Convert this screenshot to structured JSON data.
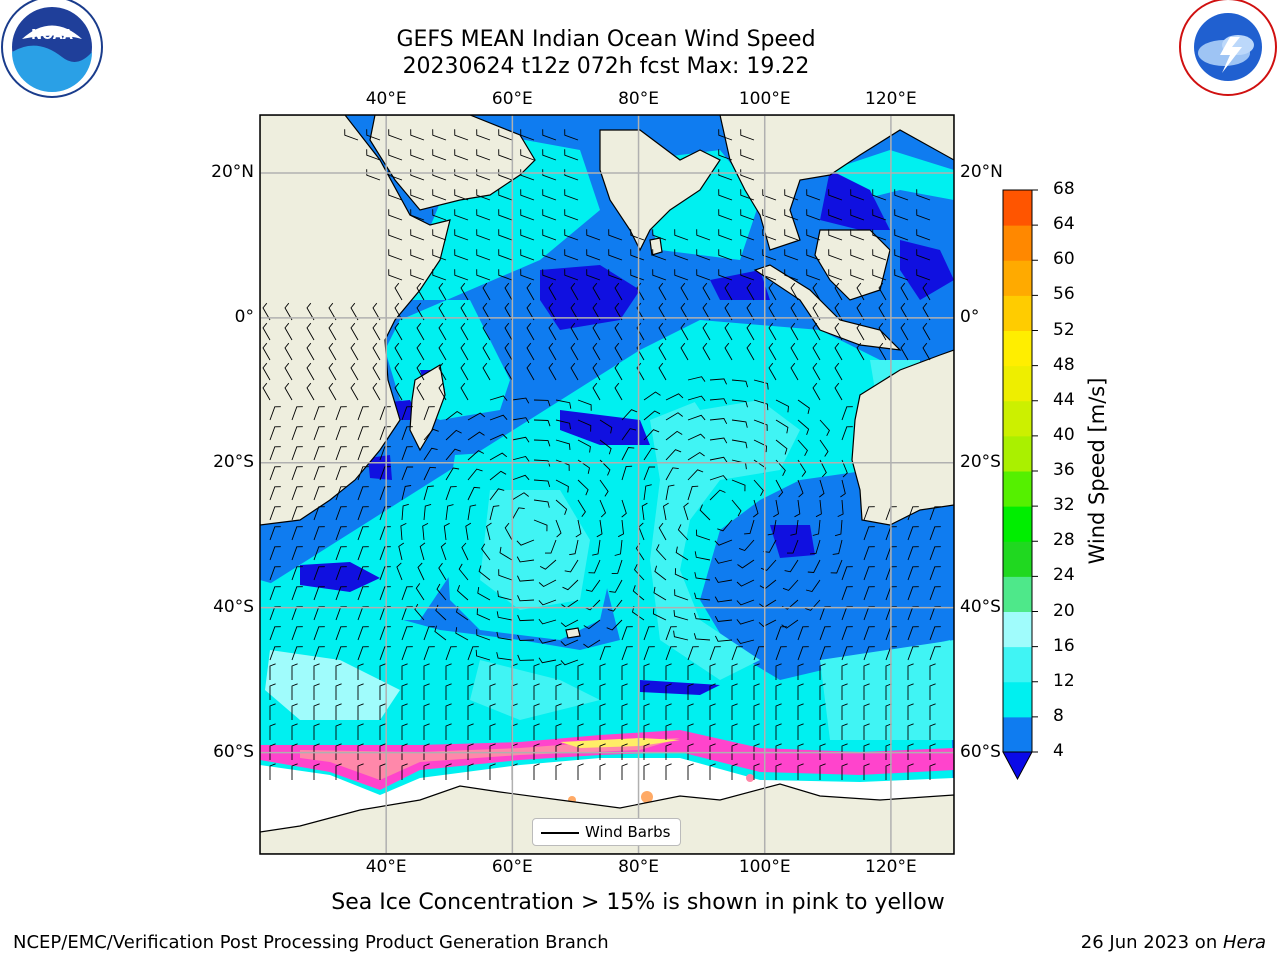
{
  "header": {
    "title_line1": "GEFS MEAN Indian Ocean Wind Speed",
    "title_line2": "20230624 t12z 072h fcst   Max: 19.22"
  },
  "logos": {
    "left": {
      "name": "NOAA",
      "ring_text": "NATIONAL OCEANIC AND ATMOSPHERIC ADMINISTRATION · U.S. DEPARTMENT OF COMMERCE ·"
    },
    "right": {
      "name": "National Weather Service",
      "ring_text": "NATIONAL WEATHER SERVICE"
    }
  },
  "map": {
    "projection": "plate-carree",
    "lon_range": [
      20,
      130
    ],
    "lat_range": [
      -74,
      28
    ],
    "lon_ticks": [
      "40°E",
      "60°E",
      "80°E",
      "100°E",
      "120°E"
    ],
    "lon_tick_values": [
      40,
      60,
      80,
      100,
      120
    ],
    "lat_ticks": [
      "20°N",
      "0°",
      "20°S",
      "40°S",
      "60°S"
    ],
    "lat_tick_values": [
      20,
      0,
      -20,
      -40,
      -60
    ],
    "gridlines": true,
    "land_color": "#eeeede",
    "sea_ice_colors": [
      "#ff44cc",
      "#ff88aa",
      "#ffaa66",
      "#ffee66"
    ],
    "colors": {
      "ws_4_8": "#0f7cf0",
      "ws_0_4": "#1010e0",
      "ws_8_12": "#00f0f0",
      "ws_12_16": "#40f4f4",
      "ws_16_20": "#a0fcfc"
    }
  },
  "legend": {
    "label": "Wind Barbs",
    "placement": "bottom-center"
  },
  "colorbar": {
    "label": "Wind Speed [m/s]",
    "ticks": [
      "4",
      "8",
      "12",
      "16",
      "20",
      "24",
      "28",
      "32",
      "36",
      "40",
      "44",
      "48",
      "52",
      "56",
      "60",
      "64",
      "68"
    ],
    "colors": [
      "#0f7cf0",
      "#00f0f0",
      "#40f4f4",
      "#a0fcfc",
      "#4ee88a",
      "#20d820",
      "#00ee00",
      "#55f000",
      "#aaf000",
      "#ccf000",
      "#eeee00",
      "#ffee00",
      "#ffcc00",
      "#ffaa00",
      "#ff8800",
      "#ff5500",
      "#ff2200",
      "#ff0000"
    ],
    "extend_color": "#0a0ae8"
  },
  "footer": {
    "caption": "Sea Ice Concentration > 15% is shown in pink to yellow",
    "left": "NCEP/EMC/Verification Post Processing Product Generation Branch",
    "right_prefix": "26 Jun 2023 on ",
    "right_host": "Hera"
  }
}
